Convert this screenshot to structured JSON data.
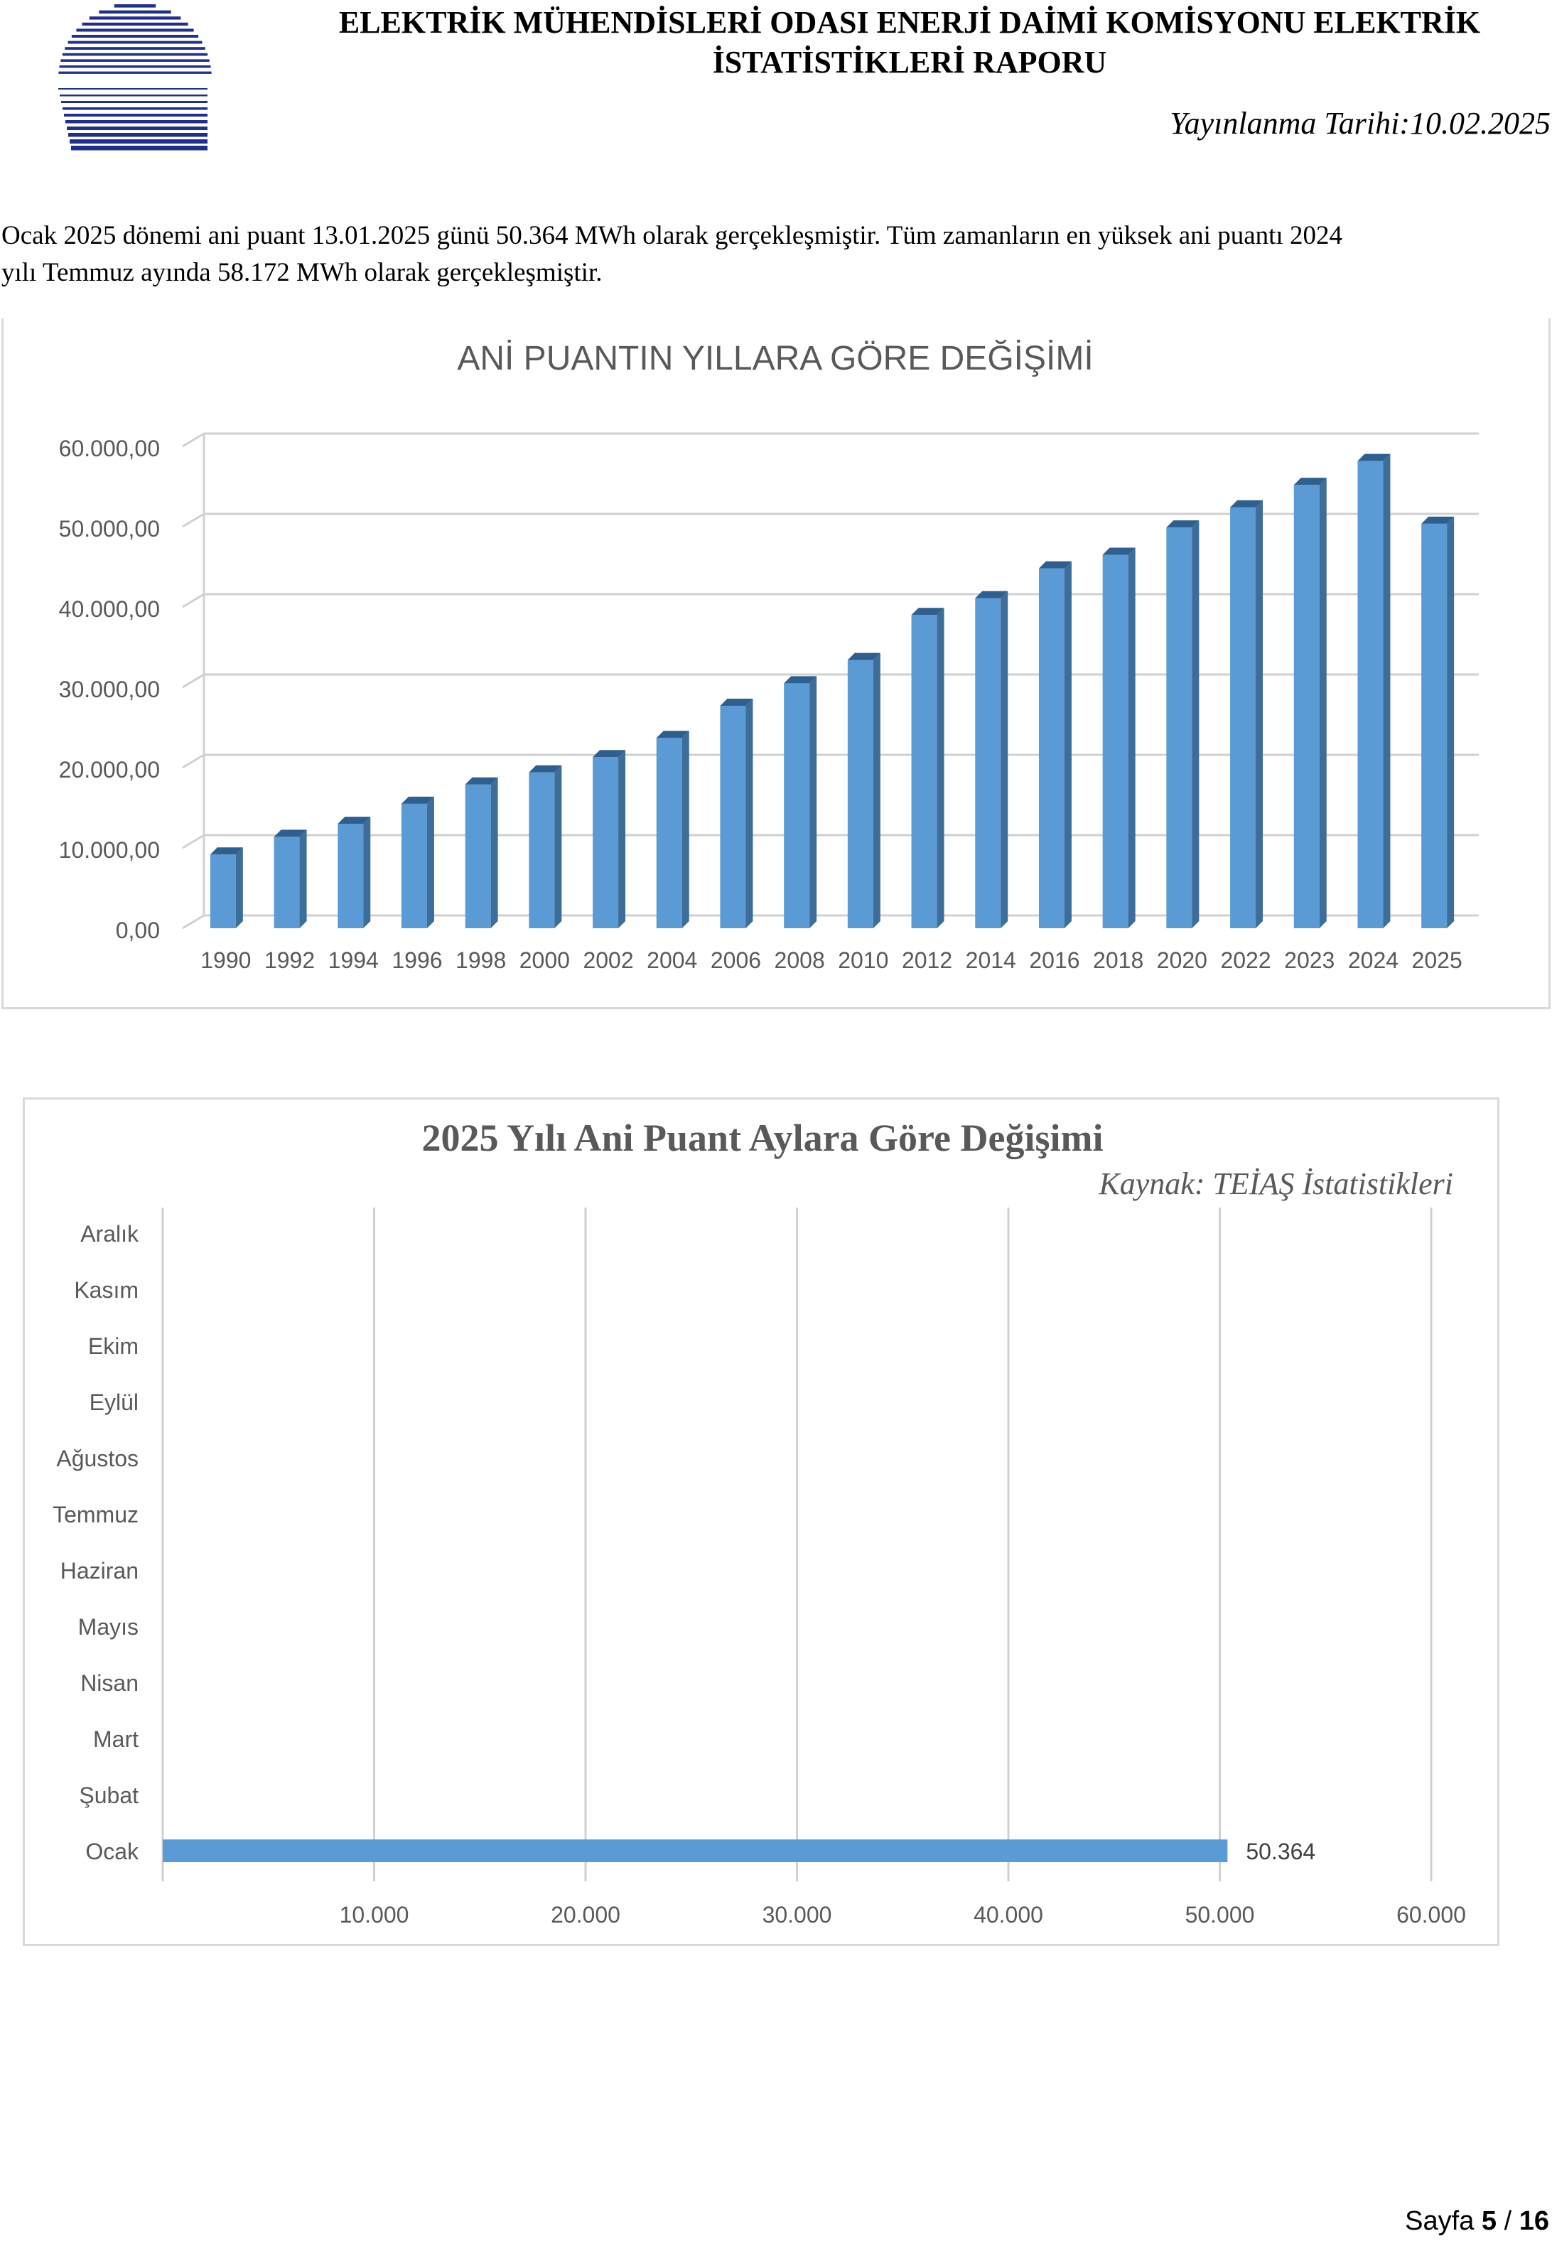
{
  "header": {
    "title_line1": "ELEKTRİK MÜHENDİSLERİ ODASI ENERJİ DAİMİ KOMİSYONU ELEKTRİK",
    "title_line2": "İSTATİSTİKLERİ RAPORU",
    "pub_label": "Yayınlanma Tarihi:",
    "pub_date": "10.02.2025",
    "logo_color": "#1f2f8f"
  },
  "intro": {
    "line1": "Ocak 2025 dönemi ani puant 13.01.2025 günü 50.364 MWh olarak gerçekleşmiştir. Tüm zamanların en yüksek ani puantı 2024",
    "line2": "yılı Temmuz ayında 58.172 MWh olarak gerçekleşmiştir."
  },
  "chart_data": [
    {
      "type": "bar",
      "title": "ANİ PUANTIN YILLARA GÖRE DEĞİŞİMİ",
      "xlabel": "",
      "ylabel": "",
      "ylim": [
        0,
        60000
      ],
      "yticks": [
        "0,00",
        "10.000,00",
        "20.000,00",
        "30.000,00",
        "40.000,00",
        "50.000,00",
        "60.000,00"
      ],
      "categories": [
        "1990",
        "1992",
        "1994",
        "1996",
        "1998",
        "2000",
        "2002",
        "2004",
        "2006",
        "2008",
        "2010",
        "2012",
        "2014",
        "2016",
        "2018",
        "2020",
        "2022",
        "2023",
        "2024",
        "2025"
      ],
      "values": [
        9180,
        11380,
        13000,
        15500,
        17900,
        19400,
        21300,
        23700,
        27700,
        30500,
        33400,
        39000,
        41100,
        44800,
        46500,
        49900,
        52400,
        55200,
        58172,
        50364
      ],
      "grid": true,
      "style": "3d-column",
      "bar_color": "#5b9bd5"
    },
    {
      "type": "bar",
      "orientation": "horizontal",
      "title": "2025 Yılı Ani Puant Aylara Göre Değişimi",
      "subtitle": "Kaynak: TEİAŞ İstatistikleri",
      "categories": [
        "Ocak",
        "Şubat",
        "Mart",
        "Nisan",
        "Mayıs",
        "Haziran",
        "Temmuz",
        "Ağustos",
        "Eylül",
        "Ekim",
        "Kasım",
        "Aralık"
      ],
      "values": [
        50364,
        null,
        null,
        null,
        null,
        null,
        null,
        null,
        null,
        null,
        null,
        null
      ],
      "data_labels": [
        "50.364"
      ],
      "xlim": [
        0,
        60000
      ],
      "xticks": [
        "10.000",
        "20.000",
        "30.000",
        "40.000",
        "50.000",
        "60.000"
      ],
      "grid": true,
      "bar_color": "#5b9bd5"
    }
  ],
  "footer": {
    "label": "Sayfa",
    "page": "5",
    "sep": " / ",
    "total": "16"
  }
}
